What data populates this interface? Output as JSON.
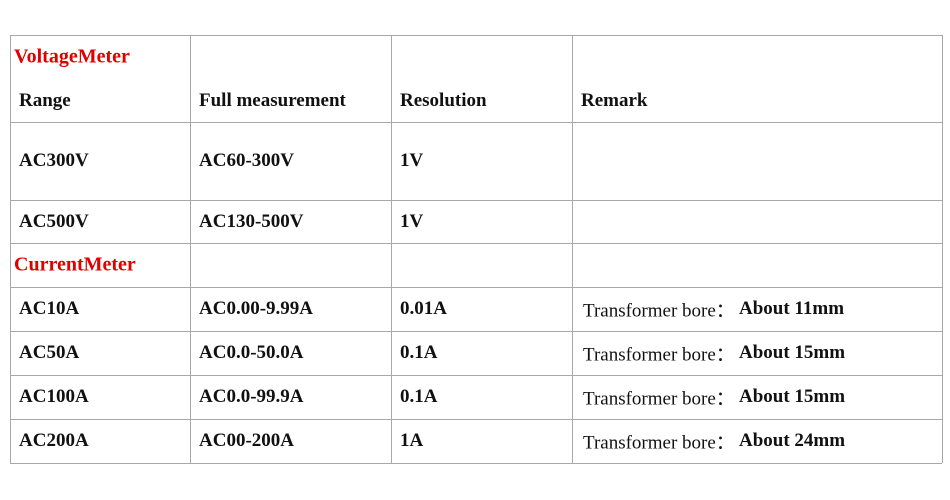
{
  "sections": [
    {
      "title": "VoltageMeter",
      "header": [
        "Range",
        "Full measurement",
        "Resolution",
        "Remark"
      ],
      "rows": [
        [
          "AC300V",
          "AC60-300V",
          "1V"
        ],
        [
          "AC500V",
          "AC130-500V",
          "1V"
        ]
      ]
    },
    {
      "title": "CurrentMeter",
      "rows": [
        [
          "AC10A",
          "AC0.00-9.99A",
          "0.01A",
          {
            "label": "Transformer bore：",
            "value": "About 11mm"
          }
        ],
        [
          "AC50A",
          "AC0.0-50.0A",
          "0.1A",
          {
            "label": "Transformer bore：",
            "value": "About 15mm"
          }
        ],
        [
          "AC100A",
          "AC0.0-99.9A",
          "0.1A",
          {
            "label": "Transformer bore：",
            "value": "About 15mm"
          }
        ],
        [
          "AC200A",
          "AC00-200A",
          "1A",
          {
            "label": "Transformer bore：",
            "value": "About 24mm"
          }
        ]
      ]
    }
  ]
}
